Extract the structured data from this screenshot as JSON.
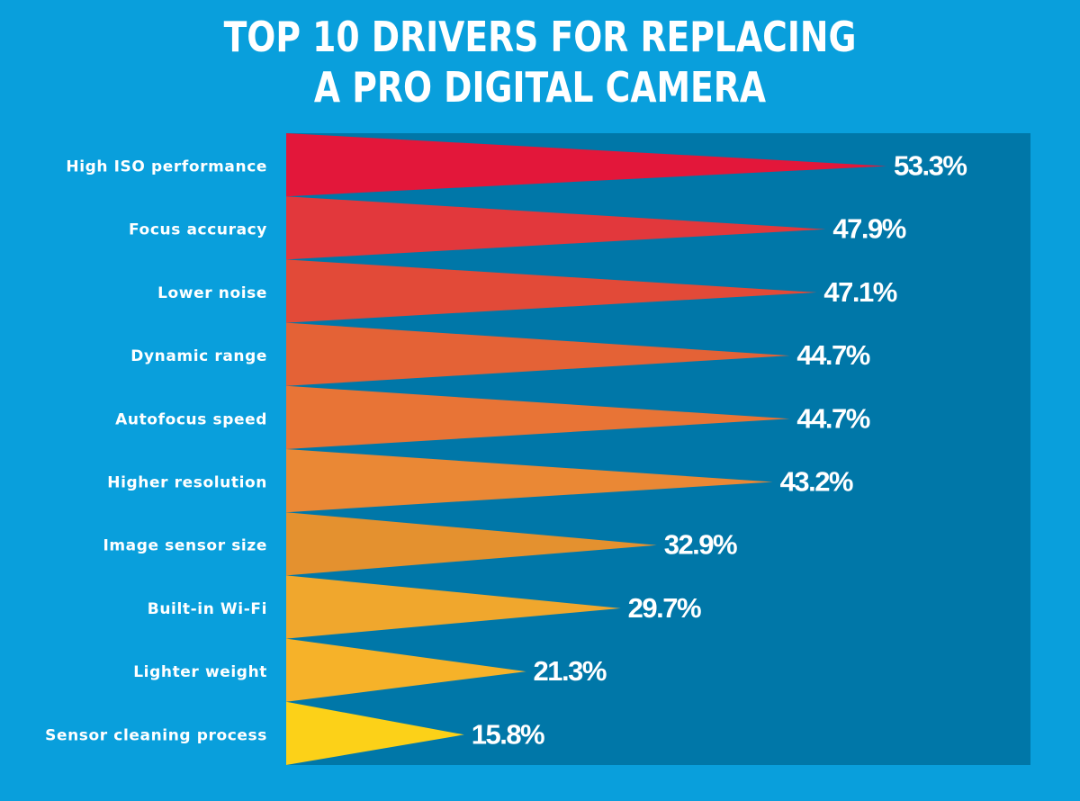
{
  "colors": {
    "background": "#099fdc",
    "panel": "#0077a8",
    "text": "#ffffff",
    "bars": [
      "#e3173a",
      "#e2383c",
      "#e24a38",
      "#e46236",
      "#e87436",
      "#ea8835",
      "#e4912f",
      "#f0a72d",
      "#f6b229",
      "#fcd118"
    ]
  },
  "chart_data": {
    "type": "bar",
    "orientation": "horizontal",
    "title_lines": [
      "TOP 10 DRIVERS FOR REPLACING",
      "A PRO DIGITAL CAMERA"
    ],
    "categories": [
      "High ISO performance",
      "Focus accuracy",
      "Lower noise",
      "Dynamic range",
      "Autofocus speed",
      "Higher resolution",
      "Image sensor size",
      "Built-in Wi-Fi",
      "Lighter weight",
      "Sensor cleaning process"
    ],
    "values": [
      53.3,
      47.9,
      47.1,
      44.7,
      44.7,
      43.2,
      32.9,
      29.7,
      21.3,
      15.8
    ],
    "value_labels": [
      "53.3%",
      "47.9%",
      "47.1%",
      "44.7%",
      "44.7%",
      "43.2%",
      "32.9%",
      "29.7%",
      "21.3%",
      "15.8%"
    ],
    "unit": "%",
    "xlim": [
      0,
      53.3
    ],
    "grid": false,
    "legend": "none",
    "bar_shape": "triangle"
  }
}
